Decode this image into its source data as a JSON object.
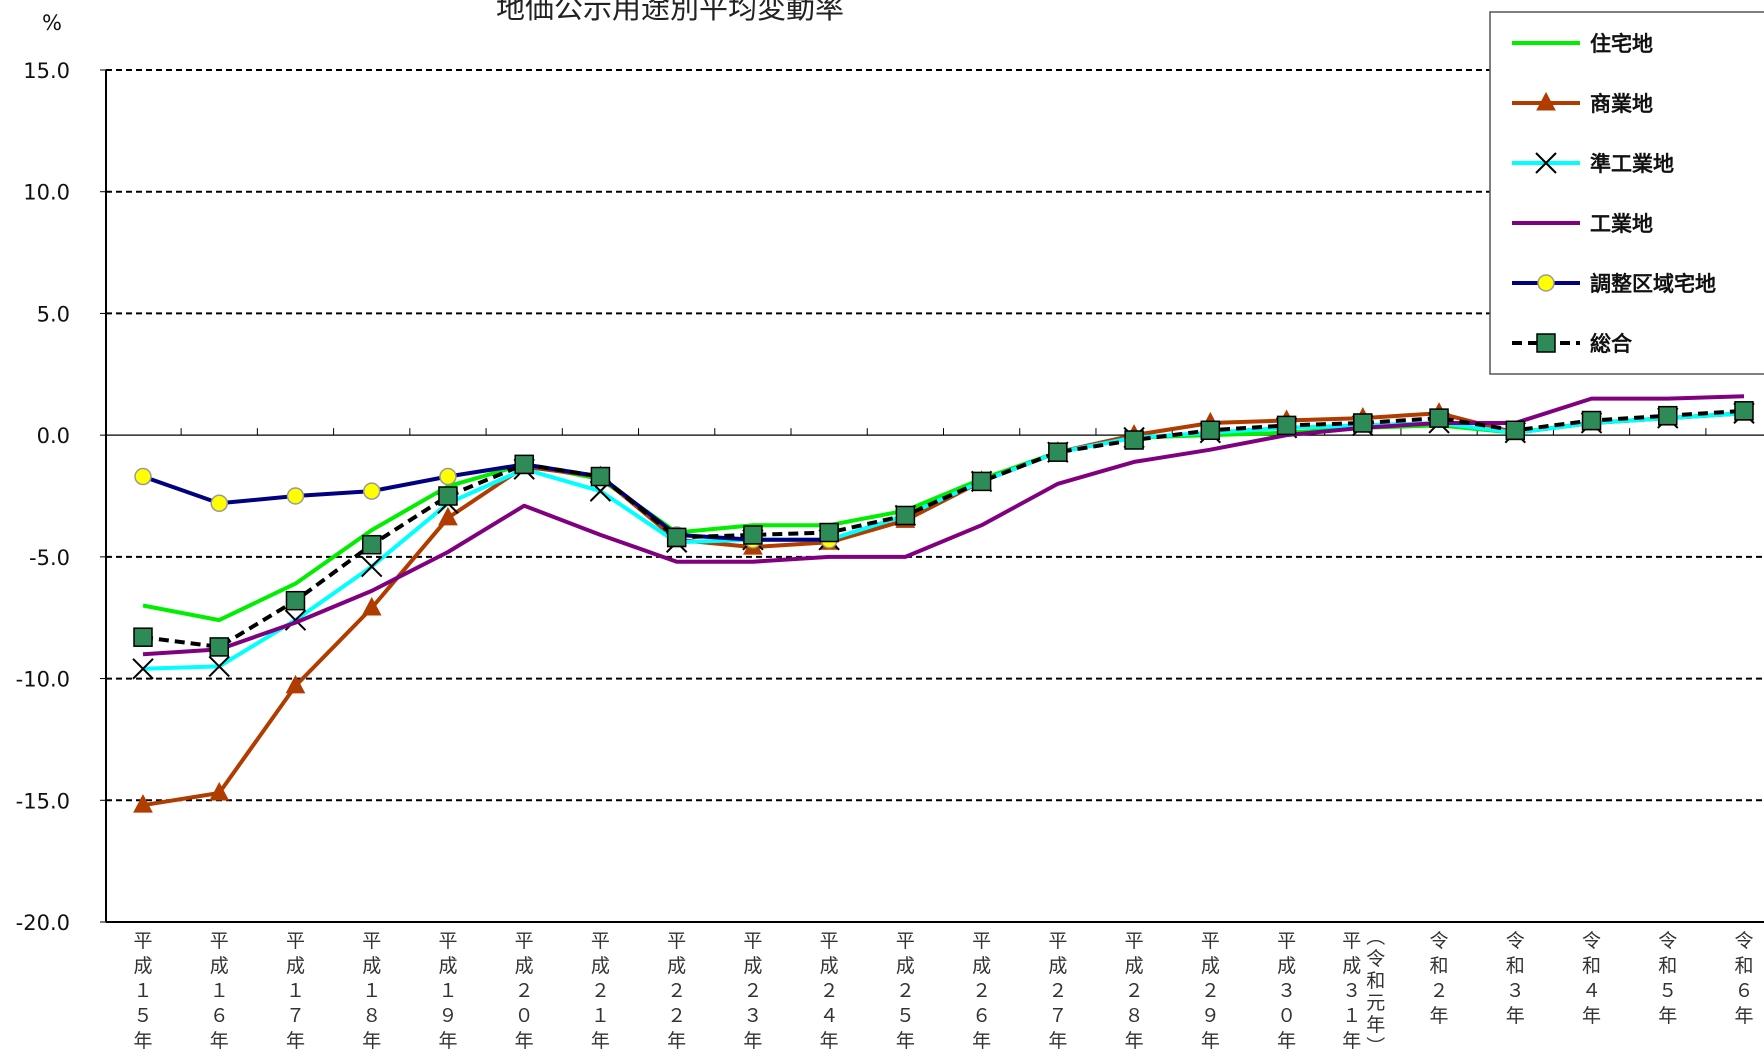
{
  "chart_data": {
    "type": "line",
    "title": "地価公示用途別平均変動率",
    "ylabel": "%",
    "ylim": [
      -20,
      15
    ],
    "yticks": [
      "15.0",
      "10.0",
      "5.0",
      "0.0",
      "-5.0",
      "-10.0",
      "-15.0",
      "-20.0"
    ],
    "grid": "dashed horizontal at 15, 10, 5, -5, -10, -15",
    "legend_position": "top-right",
    "categories": [
      "平成15年",
      "平成16年",
      "平成17年",
      "平成18年",
      "平成19年",
      "平成20年",
      "平成21年",
      "平成22年",
      "平成23年",
      "平成24年",
      "平成25年",
      "平成26年",
      "平成27年",
      "平成28年",
      "平成29年",
      "平成30年",
      "平成31年(令和元年)",
      "令和2年",
      "令和3年",
      "令和4年",
      "令和5年",
      "令和6年"
    ],
    "series": [
      {
        "name": "住宅地",
        "color": "#00ee00",
        "marker": "none",
        "values": [
          -7.0,
          -7.6,
          -6.1,
          -3.9,
          -2.1,
          -1.2,
          -1.8,
          -4.0,
          -3.7,
          -3.7,
          -3.1,
          -1.8,
          -0.7,
          -0.1,
          0.0,
          0.1,
          0.3,
          0.4,
          0.1,
          0.5,
          0.7,
          0.9
        ]
      },
      {
        "name": "商業地",
        "color": "#b03c00",
        "marker": "triangle",
        "values": [
          -15.2,
          -14.7,
          -10.3,
          -7.1,
          -3.4,
          -1.3,
          -1.7,
          -4.3,
          -4.6,
          -4.4,
          -3.5,
          -1.9,
          -0.7,
          0.0,
          0.5,
          0.6,
          0.7,
          0.9,
          0.1,
          0.5,
          0.7,
          0.9
        ]
      },
      {
        "name": "準工業地",
        "color": "#00ffff",
        "marker": "cross",
        "values": [
          -9.6,
          -9.5,
          -7.6,
          -5.4,
          -2.8,
          -1.4,
          -2.3,
          -4.4,
          -4.3,
          -4.3,
          -3.3,
          -1.9,
          -0.7,
          -0.1,
          0.1,
          0.3,
          0.4,
          0.5,
          0.1,
          0.5,
          0.7,
          0.9
        ]
      },
      {
        "name": "工業地",
        "color": "#800080",
        "marker": "none",
        "values": [
          -9.0,
          -8.8,
          -7.7,
          -6.4,
          -4.8,
          -2.9,
          -4.1,
          -5.2,
          -5.2,
          -5.0,
          -5.0,
          -3.7,
          -2.0,
          -1.1,
          -0.6,
          0.0,
          0.3,
          0.5,
          0.5,
          1.5,
          1.5,
          1.6
        ]
      },
      {
        "name": "調整区域宅地",
        "color": "#000080",
        "marker": "circle",
        "values": [
          -1.7,
          -2.8,
          -2.5,
          -2.3,
          -1.7,
          -1.2,
          -1.7,
          -4.1,
          -4.3,
          -4.3,
          null,
          null,
          null,
          null,
          null,
          null,
          null,
          null,
          null,
          null,
          null,
          null
        ]
      },
      {
        "name": "総合",
        "color": "#000000",
        "marker": "square",
        "dashed": true,
        "values": [
          -8.3,
          -8.7,
          -6.8,
          -4.5,
          -2.5,
          -1.2,
          -1.7,
          -4.2,
          -4.1,
          -4.0,
          -3.3,
          -1.9,
          -0.7,
          -0.2,
          0.2,
          0.4,
          0.5,
          0.7,
          0.2,
          0.6,
          0.8,
          1.0
        ]
      }
    ]
  }
}
